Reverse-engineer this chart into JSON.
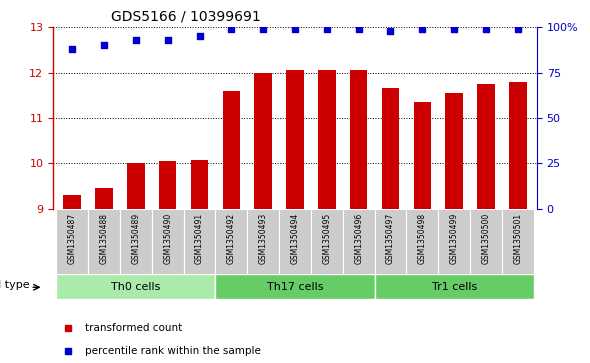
{
  "title": "GDS5166 / 10399691",
  "samples": [
    "GSM1350487",
    "GSM1350488",
    "GSM1350489",
    "GSM1350490",
    "GSM1350491",
    "GSM1350492",
    "GSM1350493",
    "GSM1350494",
    "GSM1350495",
    "GSM1350496",
    "GSM1350497",
    "GSM1350498",
    "GSM1350499",
    "GSM1350500",
    "GSM1350501"
  ],
  "bar_values": [
    9.3,
    9.45,
    10.0,
    10.05,
    10.07,
    11.6,
    12.0,
    12.05,
    12.05,
    12.05,
    11.65,
    11.35,
    11.55,
    11.75,
    11.8
  ],
  "dot_values": [
    88,
    90,
    93,
    93,
    95,
    99,
    99,
    99,
    99,
    99,
    98,
    99,
    99,
    99,
    99
  ],
  "bar_color": "#cc0000",
  "dot_color": "#0000cc",
  "ylim_left": [
    9,
    13
  ],
  "ylim_right": [
    0,
    100
  ],
  "yticks_left": [
    9,
    10,
    11,
    12,
    13
  ],
  "yticks_right": [
    0,
    25,
    50,
    75,
    100
  ],
  "yticklabels_right": [
    "0",
    "25",
    "50",
    "75",
    "100%"
  ],
  "group_labels": [
    "Th0 cells",
    "Th17 cells",
    "Tr1 cells"
  ],
  "group_ranges": [
    [
      0,
      4
    ],
    [
      5,
      9
    ],
    [
      10,
      14
    ]
  ],
  "group_colors": [
    "#aaeaaa",
    "#66cc66",
    "#66cc66"
  ],
  "cell_type_label": "cell type",
  "legend_items": [
    {
      "label": "transformed count",
      "color": "#cc0000"
    },
    {
      "label": "percentile rank within the sample",
      "color": "#0000cc"
    }
  ],
  "bar_bottom": 9,
  "tick_bg_color": "#cccccc"
}
